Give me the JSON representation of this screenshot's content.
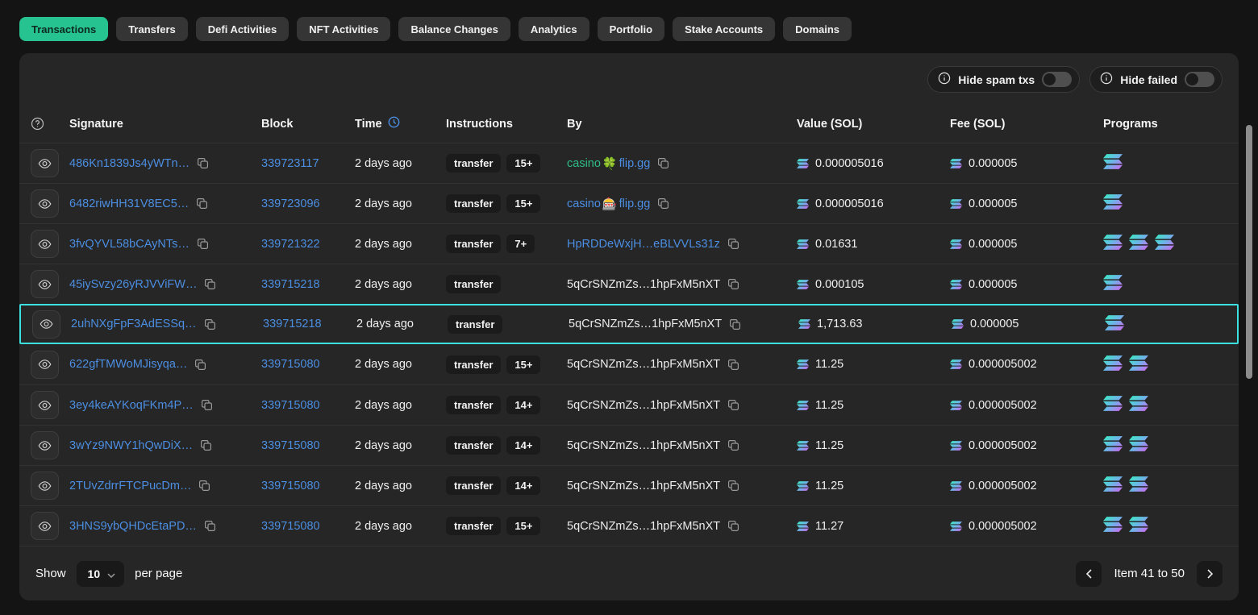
{
  "tabs": [
    {
      "label": "Transactions",
      "active": true
    },
    {
      "label": "Transfers",
      "active": false
    },
    {
      "label": "Defi Activities",
      "active": false
    },
    {
      "label": "NFT Activities",
      "active": false
    },
    {
      "label": "Balance Changes",
      "active": false
    },
    {
      "label": "Analytics",
      "active": false
    },
    {
      "label": "Portfolio",
      "active": false
    },
    {
      "label": "Stake Accounts",
      "active": false
    },
    {
      "label": "Domains",
      "active": false
    }
  ],
  "filters": {
    "hide_spam": {
      "label": "Hide spam txs",
      "enabled": false
    },
    "hide_failed": {
      "label": "Hide failed",
      "enabled": false
    }
  },
  "table": {
    "headers": {
      "signature": "Signature",
      "block": "Block",
      "time": "Time",
      "instructions": "Instructions",
      "by": "By",
      "value": "Value (SOL)",
      "fee": "Fee (SOL)",
      "programs": "Programs"
    },
    "rows": [
      {
        "signature": "486Kn1839Js4yWTn…",
        "block": "339723117",
        "time": "2 days ago",
        "instruction": "transfer",
        "count": "15+",
        "by": [
          {
            "text": "casino",
            "style": "green"
          },
          {
            "text": "🍀",
            "style": "emoji"
          },
          {
            "text": "flip.gg",
            "style": "link"
          }
        ],
        "value": "0.000005016",
        "fee": "0.000005",
        "programs": 1,
        "highlighted": false
      },
      {
        "signature": "6482riwHH31V8EC5…",
        "block": "339723096",
        "time": "2 days ago",
        "instruction": "transfer",
        "count": "15+",
        "by": [
          {
            "text": "casino",
            "style": "link"
          },
          {
            "text": "🎰",
            "style": "emoji"
          },
          {
            "text": "flip.gg",
            "style": "link"
          }
        ],
        "value": "0.000005016",
        "fee": "0.000005",
        "programs": 1,
        "highlighted": false
      },
      {
        "signature": "3fvQYVL58bCAyNTs…",
        "block": "339721322",
        "time": "2 days ago",
        "instruction": "transfer",
        "count": "7+",
        "by": [
          {
            "text": "HpRDDeWxjH…eBLVVLs31z",
            "style": "link"
          }
        ],
        "value": "0.01631",
        "fee": "0.000005",
        "programs": 3,
        "highlighted": false
      },
      {
        "signature": "45iySvzy26yRJVViFW…",
        "block": "339715218",
        "time": "2 days ago",
        "instruction": "transfer",
        "count": null,
        "by": [
          {
            "text": "5qCrSNZmZs…1hpFxM5nXT",
            "style": "plain"
          }
        ],
        "value": "0.000105",
        "fee": "0.000005",
        "programs": 1,
        "highlighted": false
      },
      {
        "signature": "2uhNXgFpF3AdESSq…",
        "block": "339715218",
        "time": "2 days ago",
        "instruction": "transfer",
        "count": null,
        "by": [
          {
            "text": "5qCrSNZmZs…1hpFxM5nXT",
            "style": "plain"
          }
        ],
        "value": "1,713.63",
        "fee": "0.000005",
        "programs": 1,
        "highlighted": true
      },
      {
        "signature": "622gfTMWoMJisyqa…",
        "block": "339715080",
        "time": "2 days ago",
        "instruction": "transfer",
        "count": "15+",
        "by": [
          {
            "text": "5qCrSNZmZs…1hpFxM5nXT",
            "style": "plain"
          }
        ],
        "value": "11.25",
        "fee": "0.000005002",
        "programs": 2,
        "highlighted": false
      },
      {
        "signature": "3ey4keAYKoqFKm4P…",
        "block": "339715080",
        "time": "2 days ago",
        "instruction": "transfer",
        "count": "14+",
        "by": [
          {
            "text": "5qCrSNZmZs…1hpFxM5nXT",
            "style": "plain"
          }
        ],
        "value": "11.25",
        "fee": "0.000005002",
        "programs": 2,
        "highlighted": false
      },
      {
        "signature": "3wYz9NWY1hQwDiX…",
        "block": "339715080",
        "time": "2 days ago",
        "instruction": "transfer",
        "count": "14+",
        "by": [
          {
            "text": "5qCrSNZmZs…1hpFxM5nXT",
            "style": "plain"
          }
        ],
        "value": "11.25",
        "fee": "0.000005002",
        "programs": 2,
        "highlighted": false
      },
      {
        "signature": "2TUvZdrrFTCPucDm…",
        "block": "339715080",
        "time": "2 days ago",
        "instruction": "transfer",
        "count": "14+",
        "by": [
          {
            "text": "5qCrSNZmZs…1hpFxM5nXT",
            "style": "plain"
          }
        ],
        "value": "11.25",
        "fee": "0.000005002",
        "programs": 2,
        "highlighted": false
      },
      {
        "signature": "3HNS9ybQHDcEtaPD…",
        "block": "339715080",
        "time": "2 days ago",
        "instruction": "transfer",
        "count": "15+",
        "by": [
          {
            "text": "5qCrSNZmZs…1hpFxM5nXT",
            "style": "plain"
          }
        ],
        "value": "11.27",
        "fee": "0.000005002",
        "programs": 2,
        "highlighted": false
      }
    ]
  },
  "footer": {
    "show_label": "Show",
    "page_size": "10",
    "per_page_label": "per page",
    "range_label": "Item 41 to 50"
  },
  "icons": {
    "header_help": "question-circle-icon",
    "row_view": "eye-icon",
    "copy": "copy-icon",
    "time_sort": "clock-icon",
    "filter_info": "info-icon",
    "token": "solana-icon",
    "page_prev": "chevron-left-icon",
    "page_next": "chevron-right-icon",
    "select_arrow": "chevron-down-icon"
  },
  "colors": {
    "active_tab": "#26c28f",
    "link": "#4b8ee2",
    "highlight_border": "#3be0e0",
    "green_label": "#2ebd85",
    "sol_gradient_top": "#3ee8c5",
    "sol_gradient_bottom": "#cb6cf0",
    "card_bg": "#262626",
    "page_bg": "#141414"
  }
}
